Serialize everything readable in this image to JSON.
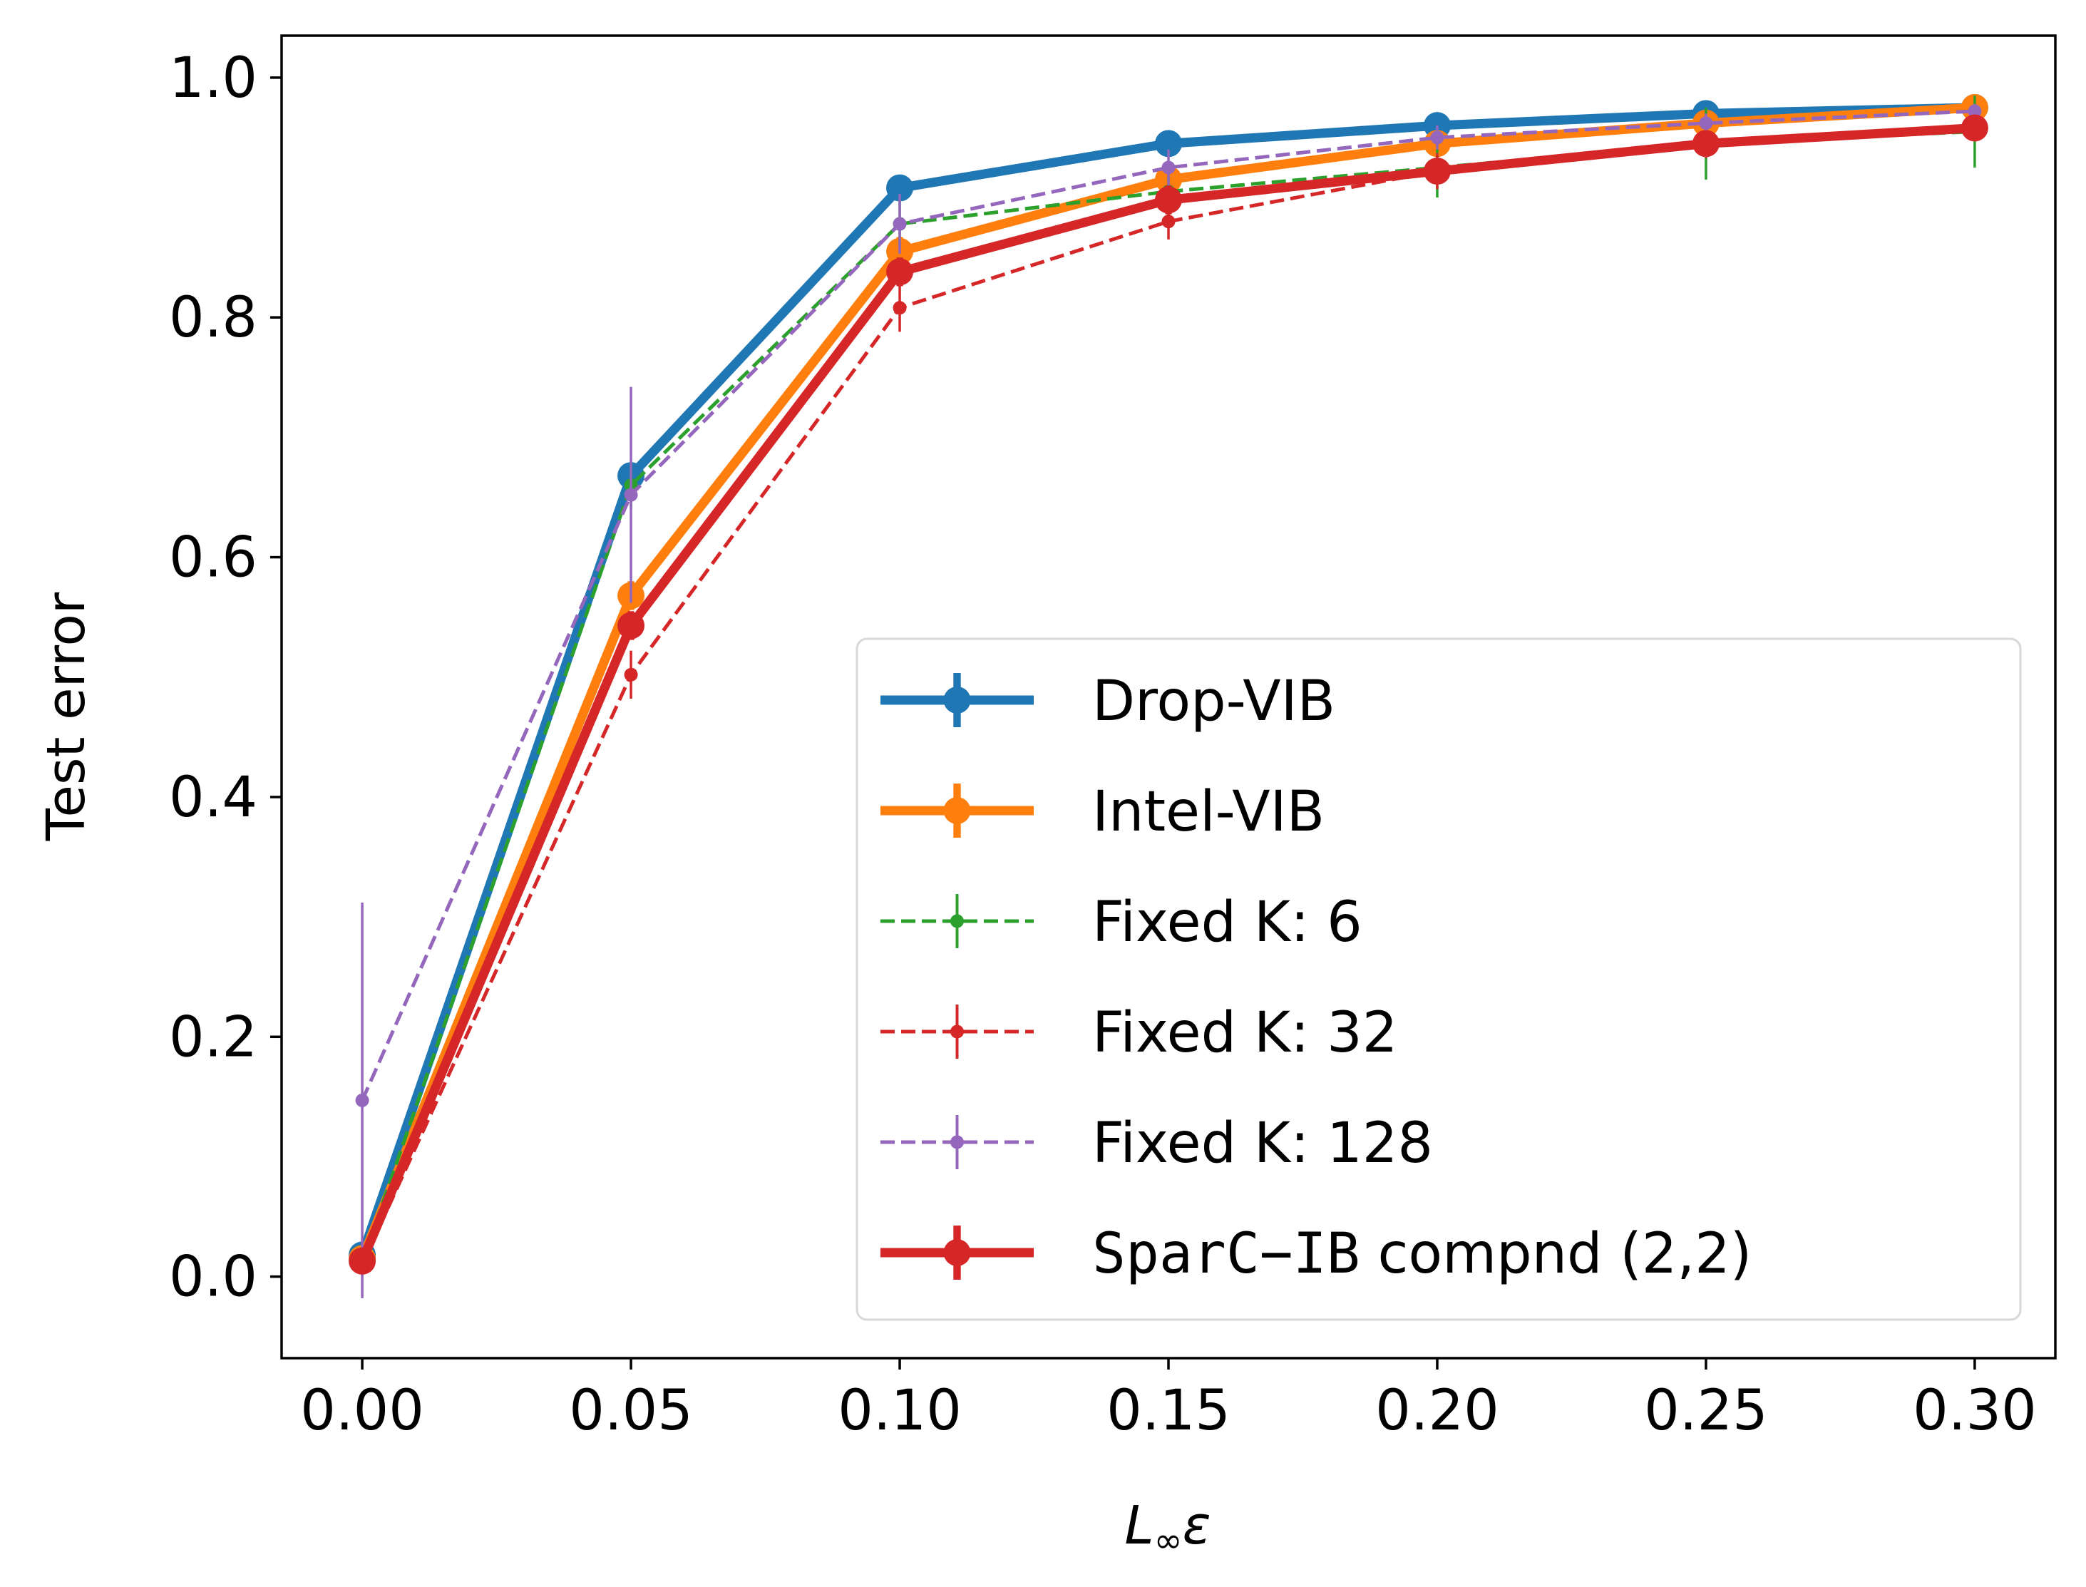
{
  "chart_data": {
    "type": "line",
    "title": "",
    "xlabel": "L∞ε",
    "xlabel_main": "L",
    "xlabel_sub": "∞",
    "xlabel_tail": "ε",
    "ylabel": "Test error",
    "xlim": [
      -0.015,
      0.315
    ],
    "ylim": [
      -0.068,
      1.035
    ],
    "x": [
      0.0,
      0.05,
      0.1,
      0.15,
      0.2,
      0.25,
      0.3
    ],
    "xticks": [
      0.0,
      0.05,
      0.1,
      0.15,
      0.2,
      0.25,
      0.3
    ],
    "xtick_labels": [
      "0.00",
      "0.05",
      "0.10",
      "0.15",
      "0.20",
      "0.25",
      "0.30"
    ],
    "yticks": [
      0.0,
      0.2,
      0.4,
      0.6,
      0.8,
      1.0
    ],
    "ytick_labels": [
      "0.0",
      "0.2",
      "0.4",
      "0.6",
      "0.8",
      "1.0"
    ],
    "grid": false,
    "legend_position": "lower-right",
    "series": [
      {
        "name": "Drop-VIB",
        "color": "#1f77b4",
        "style": "solid",
        "weight": "thick",
        "values": [
          0.018,
          0.668,
          0.908,
          0.945,
          0.96,
          0.97,
          0.975
        ],
        "errors": [
          0.01,
          0.01,
          0.01,
          0.008,
          0.008,
          0.006,
          0.005
        ]
      },
      {
        "name": "Intel-VIB",
        "color": "#ff7f0e",
        "style": "solid",
        "weight": "thick",
        "values": [
          0.015,
          0.568,
          0.855,
          0.915,
          0.945,
          0.962,
          0.975
        ],
        "errors": [
          0.01,
          0.012,
          0.012,
          0.01,
          0.01,
          0.008,
          0.006
        ]
      },
      {
        "name": "Fixed K: 6",
        "label_prefix": "Fixed K: ",
        "label_value": "6",
        "color": "#2ca02c",
        "style": "dashed",
        "weight": "thin",
        "values": [
          0.012,
          0.66,
          0.878,
          0.905,
          0.925,
          0.945,
          0.955
        ],
        "errors": [
          0.01,
          0.02,
          0.02,
          0.02,
          0.025,
          0.03,
          0.03
        ]
      },
      {
        "name": "Fixed K: 32",
        "label_prefix": "Fixed K: ",
        "label_value": "32",
        "color": "#d62728",
        "style": "dashed",
        "weight": "thin",
        "values": [
          0.01,
          0.502,
          0.808,
          0.88,
          0.922,
          0.945,
          0.958
        ],
        "errors": [
          0.01,
          0.02,
          0.02,
          0.015,
          0.015,
          0.012,
          0.01
        ]
      },
      {
        "name": "Fixed K: 128",
        "label_prefix": "Fixed K: ",
        "label_value": "128",
        "color": "#9467bd",
        "style": "dashed",
        "weight": "thin",
        "values": [
          0.147,
          0.652,
          0.878,
          0.925,
          0.95,
          0.962,
          0.972
        ],
        "errors": [
          0.165,
          0.09,
          0.025,
          0.015,
          0.01,
          0.008,
          0.006
        ]
      },
      {
        "name": "SparC−IB compnd (2,2)",
        "label_prefix": "SparC−IB",
        "label_suffix": " compnd (2,2)",
        "color": "#d62728",
        "style": "solid",
        "weight": "thick",
        "values": [
          0.013,
          0.543,
          0.838,
          0.898,
          0.922,
          0.945,
          0.958
        ],
        "errors": [
          0.01,
          0.012,
          0.012,
          0.012,
          0.01,
          0.01,
          0.008
        ]
      }
    ]
  }
}
